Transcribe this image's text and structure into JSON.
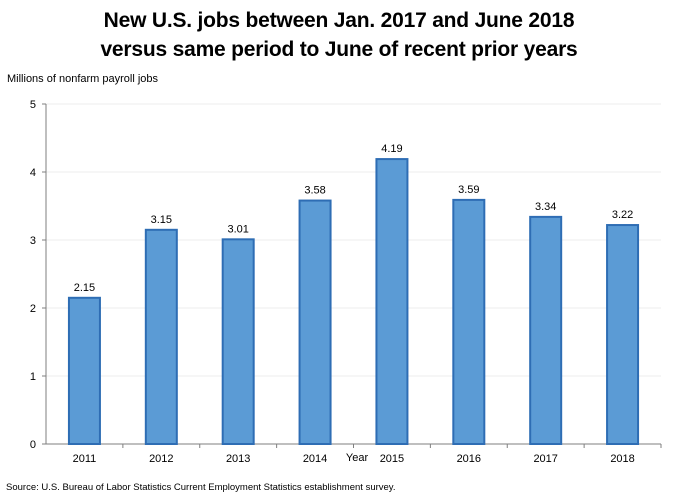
{
  "chart_data": {
    "type": "bar",
    "title_lines": [
      "New U.S. jobs between Jan. 2017 and June 2018",
      "versus same period to June of recent prior years"
    ],
    "ylabel": "Millions of nonfarm payroll jobs",
    "xlabel": "Year",
    "categories": [
      "2011",
      "2012",
      "2013",
      "2014",
      "2015",
      "2016",
      "2017",
      "2018"
    ],
    "values": [
      2.15,
      3.15,
      3.01,
      3.58,
      4.19,
      3.59,
      3.34,
      3.22
    ],
    "value_labels": [
      "2.15",
      "3.15",
      "3.01",
      "3.58",
      "4.19",
      "3.59",
      "3.34",
      "3.22"
    ],
    "yticks": [
      "0",
      "1",
      "2",
      "3",
      "4",
      "5"
    ],
    "ylim": [
      0,
      5
    ],
    "grid": true,
    "bar_fill": "#5b9bd5",
    "bar_stroke": "#2e6db4",
    "source": "Source: U.S. Bureau of Labor Statistics Current Employment Statistics establishment survey."
  }
}
